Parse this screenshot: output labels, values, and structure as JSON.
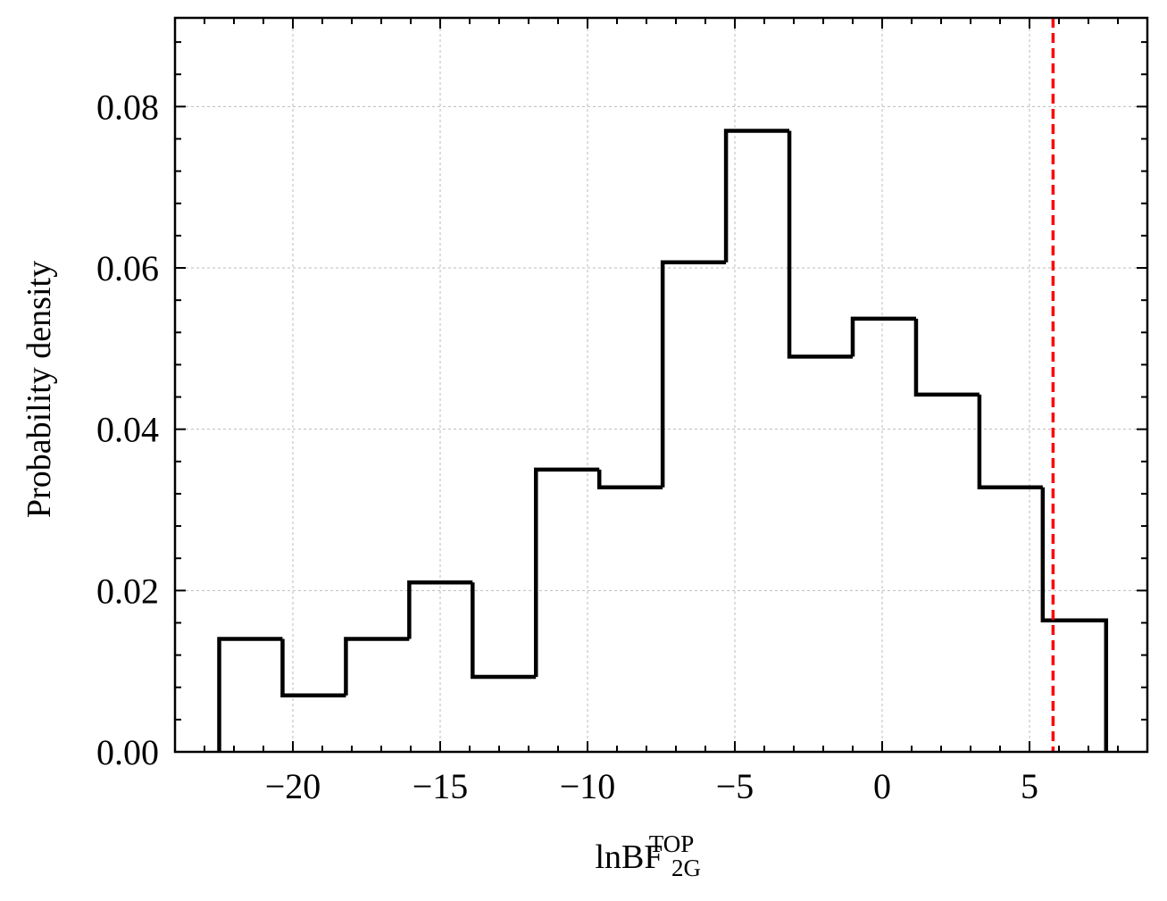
{
  "chart_data": {
    "type": "histogram",
    "xlabel": "lnBF",
    "xlabel_subscript": "2G",
    "xlabel_superscript": "TOP",
    "ylabel": "Probability density",
    "xlim": [
      -24.0,
      9.0
    ],
    "ylim": [
      0.0,
      0.091
    ],
    "xticks": [
      -20,
      -15,
      -10,
      -5,
      0,
      5
    ],
    "xtick_labels": [
      "−20",
      "−15",
      "−10",
      "−5",
      "0",
      "5"
    ],
    "yticks": [
      0.0,
      0.02,
      0.04,
      0.06,
      0.08
    ],
    "ytick_labels": [
      "0.00",
      "0.02",
      "0.04",
      "0.06",
      "0.08"
    ],
    "bin_edges": [
      -22.5,
      -20.35,
      -18.2,
      -16.05,
      -13.9,
      -11.75,
      -9.6,
      -7.45,
      -5.3,
      -3.15,
      -1.0,
      1.15,
      3.3,
      5.45,
      7.6
    ],
    "densities": [
      0.014,
      0.007,
      0.014,
      0.021,
      0.0093,
      0.035,
      0.0328,
      0.0607,
      0.077,
      0.049,
      0.0537,
      0.0443,
      0.0328,
      0.0163
    ],
    "reference_line": {
      "x": 5.8,
      "style": "dashed",
      "color": "#ff0000"
    },
    "histogram_color": "#000000",
    "grid": true,
    "grid_style": "dotted",
    "grid_color": "#bbbbbb"
  }
}
